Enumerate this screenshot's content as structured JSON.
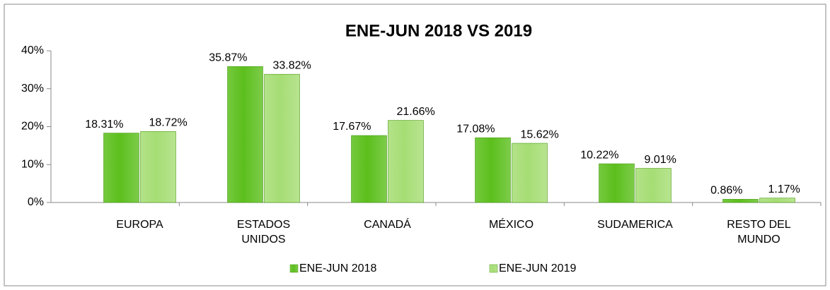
{
  "chart_data": {
    "type": "bar",
    "title": "ENE-JUN 2018 VS 2019",
    "categories": [
      "EUROPA",
      "ESTADOS UNIDOS",
      "CANADÁ",
      "MÉXICO",
      "SUDAMERICA",
      "RESTO DEL MUNDO"
    ],
    "series": [
      {
        "name": "ENE-JUN 2018",
        "color": "#5cbf1c",
        "values": [
          18.31,
          35.87,
          17.67,
          17.08,
          10.22,
          0.86
        ],
        "value_labels": [
          "18.31%",
          "35.87%",
          "17.67%",
          "17.08%",
          "10.22%",
          "0.86%"
        ]
      },
      {
        "name": "ENE-JUN 2019",
        "color": "#a6dd74",
        "values": [
          18.72,
          33.82,
          21.66,
          15.62,
          9.01,
          1.17
        ],
        "value_labels": [
          "18.72%",
          "33.82%",
          "21.66%",
          "15.62%",
          "9.01%",
          "1.17%"
        ]
      }
    ],
    "ylim": [
      0,
      40
    ],
    "yticks": [
      {
        "value": 0,
        "label": "0%"
      },
      {
        "value": 10,
        "label": "10%"
      },
      {
        "value": 20,
        "label": "20%"
      },
      {
        "value": 30,
        "label": "30%"
      },
      {
        "value": 40,
        "label": "40%"
      }
    ],
    "legend": "bottom"
  }
}
